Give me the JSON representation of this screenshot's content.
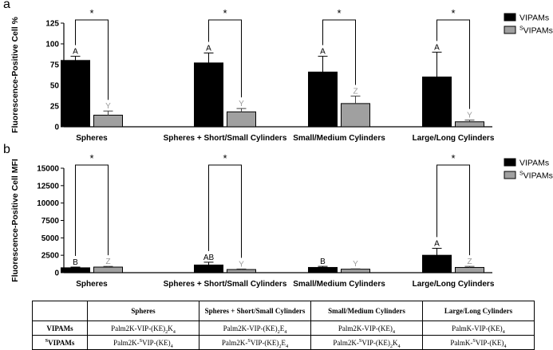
{
  "chart_data": [
    {
      "type": "bar",
      "panel_label": "a",
      "ylabel": "Fluorescence-Positive Cell %",
      "ylim": [
        0,
        125
      ],
      "yticks": [
        "0",
        "25",
        "50",
        "75",
        "100",
        "125"
      ],
      "categories": [
        "Spheres",
        "Spheres + Short/Small Cylinders",
        "Small/Medium Cylinders",
        "Large/Long Cylinders"
      ],
      "series": [
        {
          "name": "VIPAMs",
          "color": "#000000",
          "values": [
            80,
            77,
            66,
            60
          ],
          "errors": [
            5,
            12,
            19,
            30
          ],
          "letters": [
            "A",
            "A",
            "A",
            "A"
          ]
        },
        {
          "name": "SVIPAMs",
          "color": "#a0a0a0",
          "values": [
            14,
            18,
            28,
            6
          ],
          "errors": [
            5,
            4,
            9,
            2
          ],
          "letters": [
            "Y",
            "Y",
            "Z",
            "Y"
          ]
        }
      ],
      "significance": [
        "*",
        "*",
        "*",
        "*"
      ],
      "legend_position": "top-right"
    },
    {
      "type": "bar",
      "panel_label": "b",
      "ylabel": "Fluorescence-Positive Cell MFI",
      "ylim": [
        0,
        15000
      ],
      "yticks": [
        "0",
        "2500",
        "5000",
        "7500",
        "10000",
        "12500",
        "15000"
      ],
      "categories": [
        "Spheres",
        "Spheres + Short/Small Cylinders",
        "Small/Medium Cylinders",
        "Large/Long Cylinders"
      ],
      "series": [
        {
          "name": "VIPAMs",
          "color": "#000000",
          "values": [
            700,
            1100,
            750,
            2500
          ],
          "errors": [
            100,
            400,
            150,
            1000
          ],
          "letters": [
            "B",
            "AB",
            "B",
            "A"
          ]
        },
        {
          "name": "SVIPAMs",
          "color": "#a0a0a0",
          "values": [
            800,
            450,
            500,
            750
          ],
          "errors": [
            100,
            80,
            50,
            150
          ],
          "letters": [
            "Z",
            "Y",
            "Y",
            "Z"
          ]
        }
      ],
      "significance": [
        "*",
        "*",
        "",
        "*"
      ],
      "legend_position": "top-right"
    }
  ],
  "legend_items": [
    {
      "base": "VIPAMs",
      "sup": ""
    },
    {
      "base": "VIPAMs",
      "sup": "S"
    }
  ],
  "table": {
    "headers": [
      "",
      "Spheres",
      "Spheres + Short/Small Cylinders",
      "Small/Medium Cylinders",
      "Large/Long Cylinders"
    ],
    "rows": [
      {
        "label": {
          "sup": "",
          "base": "VIPAMs"
        },
        "cells": [
          "Palm2K-VIP-(KE)2K4",
          "Palm2K-VIP-(KE)2E4",
          "Palm2K-VIP-(KE)4",
          "PalmK-VIP-(KE)4"
        ]
      },
      {
        "label": {
          "sup": "S",
          "base": "VIPAMs"
        },
        "cells": [
          "Palm2K-SVIP-(KE)4",
          "Palm2K-SVIP-(KE)2E4",
          "Palm2K-SVIP-(KE)2K4",
          "PalmK-SVIP-(KE)4"
        ]
      }
    ]
  }
}
